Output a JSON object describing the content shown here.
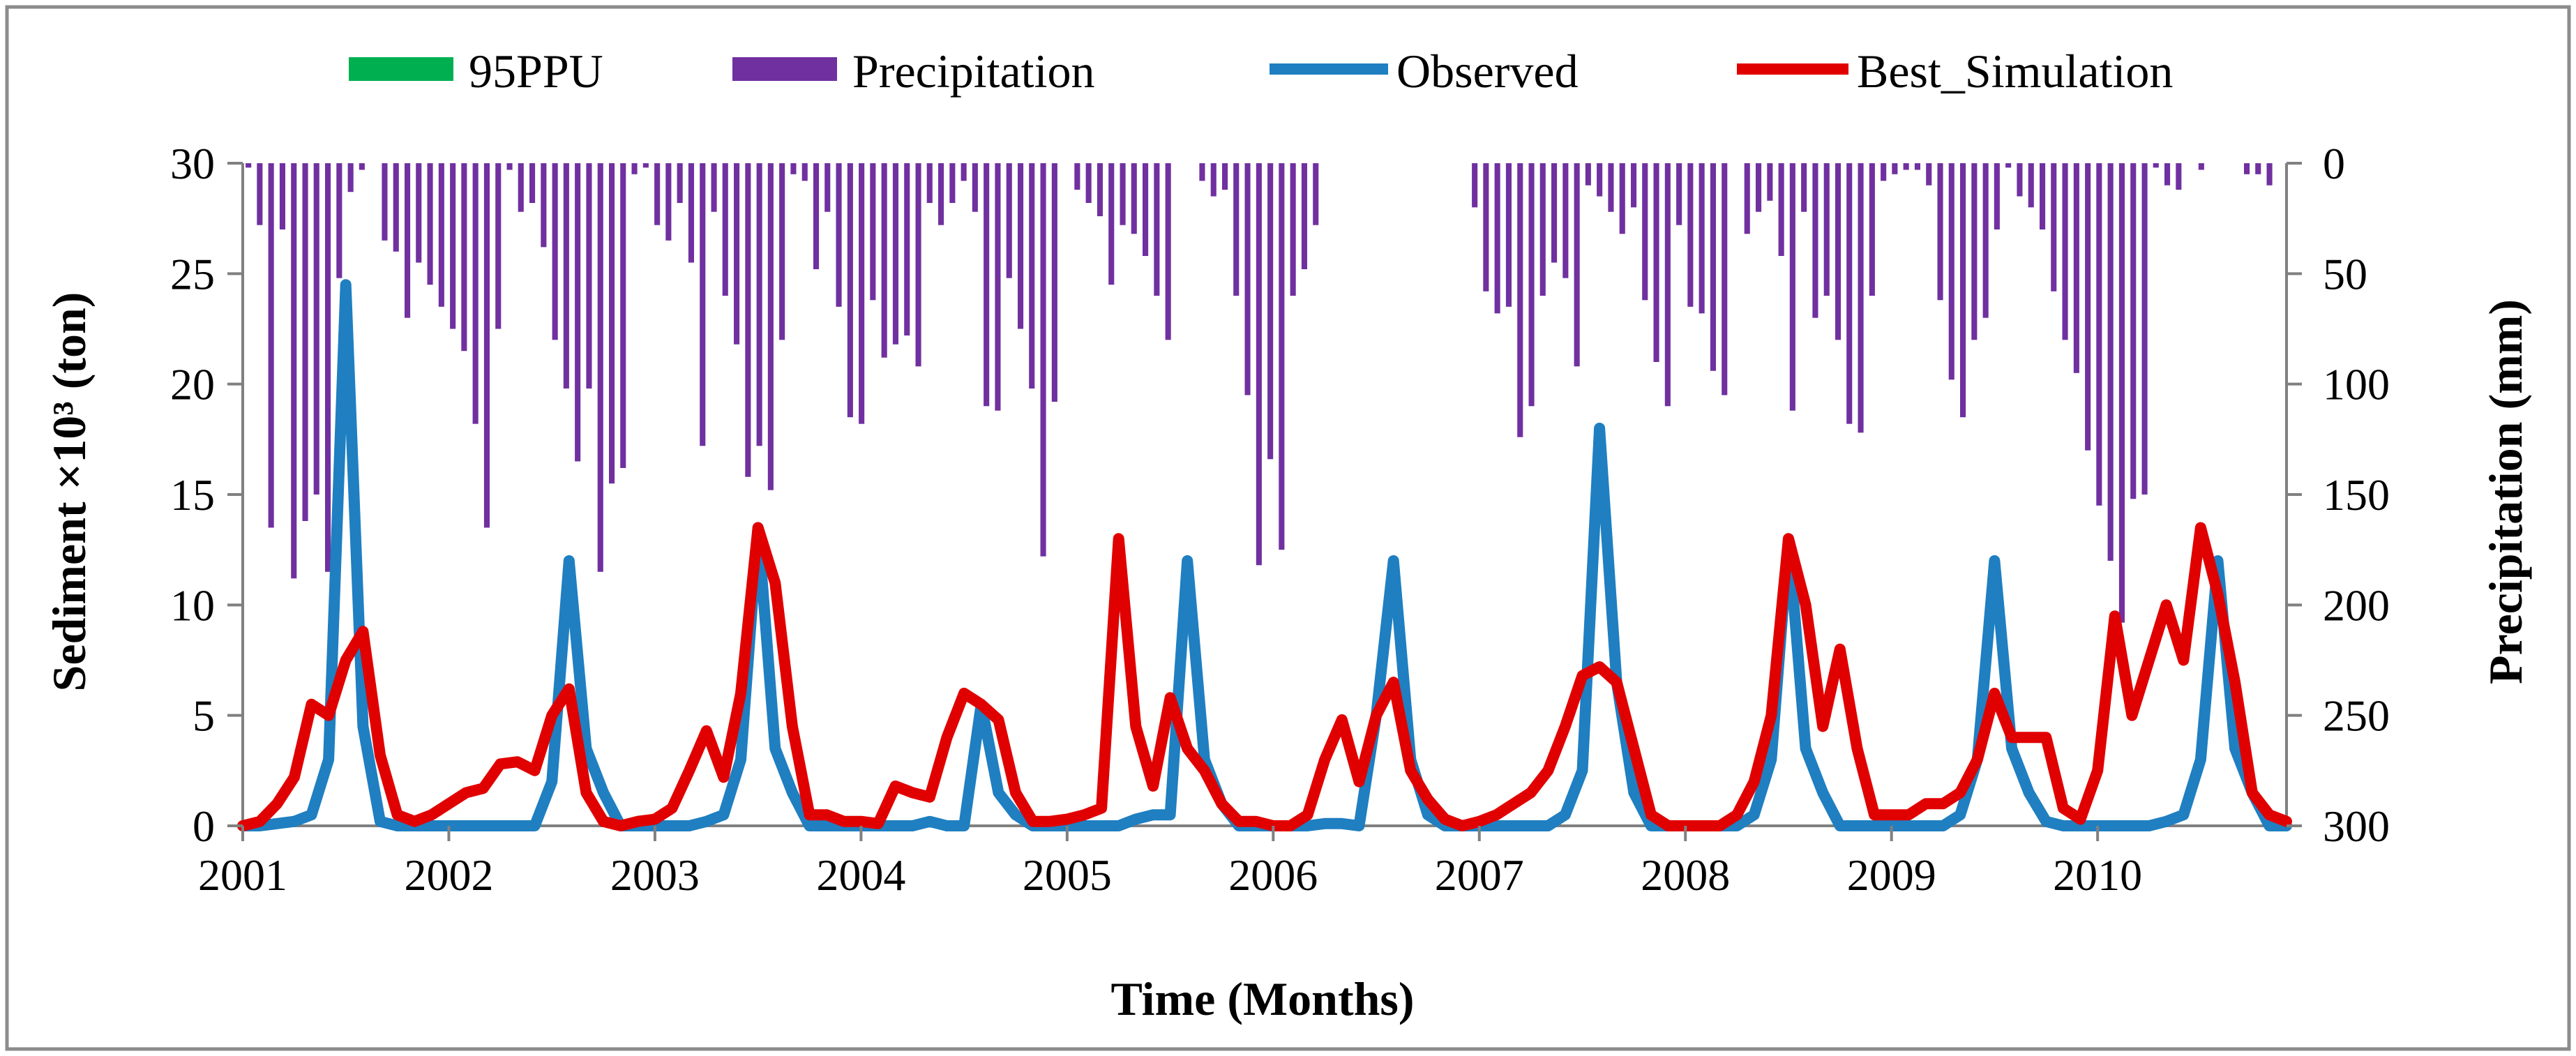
{
  "chart_data": {
    "type": "line",
    "xlabel": "Time (Months)",
    "ylabel_left": "Sediment ×10³ (ton)",
    "ylabel_right": "Precipitation (mm)",
    "ylim_left": [
      0,
      30
    ],
    "ylim_right_inverted": [
      0,
      300
    ],
    "yticks_left": [
      "0",
      "5",
      "10",
      "15",
      "20",
      "25",
      "30"
    ],
    "yticks_right": [
      "0",
      "50",
      "100",
      "150",
      "200",
      "250",
      "300"
    ],
    "xticks": [
      "2001",
      "2002",
      "2003",
      "2004",
      "2005",
      "2006",
      "2007",
      "2008",
      "2009",
      "2010"
    ],
    "legend": {
      "position": "top",
      "entries": [
        "95PPU",
        "Precipitation",
        "Observed",
        "Best_Simulation"
      ]
    },
    "colors": {
      "ppu": "#00b050",
      "precipitation": "#7030a0",
      "observed": "#1f7fc1",
      "simulation": "#e10000"
    },
    "series": [
      {
        "name": "Precipitation",
        "axis": "right",
        "values": [
          2,
          28,
          165,
          30,
          188,
          162,
          150,
          185,
          52,
          13,
          3,
          0,
          35,
          40,
          70,
          45,
          55,
          65,
          75,
          85,
          118,
          165,
          75,
          3,
          22,
          18,
          38,
          80,
          102,
          135,
          102,
          185,
          145,
          138,
          5,
          2,
          28,
          35,
          18,
          45,
          128,
          22,
          60,
          82,
          142,
          128,
          148,
          80,
          5,
          8,
          48,
          22,
          65,
          115,
          118,
          62,
          88,
          82,
          78,
          92,
          18,
          28,
          18,
          8,
          22,
          110,
          112,
          52,
          75,
          102,
          178,
          108,
          0,
          12,
          18,
          24,
          55,
          28,
          32,
          42,
          60,
          80,
          0,
          0,
          8,
          15,
          12,
          60,
          105,
          182,
          134,
          175,
          60,
          48,
          28,
          0,
          0,
          0,
          0,
          0,
          0,
          0,
          0,
          0,
          0,
          0,
          0,
          0,
          20,
          58,
          68,
          65,
          124,
          110,
          60,
          45,
          52,
          92,
          10,
          15,
          22,
          32,
          20,
          62,
          90,
          110,
          28,
          65,
          68,
          94,
          105,
          0,
          32,
          22,
          17,
          42,
          112,
          22,
          70,
          60,
          80,
          118,
          122,
          60,
          8,
          5,
          3,
          3,
          10,
          62,
          98,
          115,
          80,
          70,
          30,
          2,
          15,
          20,
          30,
          58,
          80,
          95,
          130,
          155,
          180,
          208,
          152,
          150,
          2,
          10,
          12,
          0,
          3,
          0,
          0,
          0,
          5,
          5,
          10,
          0
        ]
      },
      {
        "name": "Observed",
        "axis": "left",
        "values": [
          0,
          0,
          0.1,
          0.2,
          0.5,
          3,
          24.5,
          4.5,
          0.2,
          0,
          0,
          0,
          0,
          0,
          0,
          0,
          0,
          0,
          2,
          12,
          3.5,
          1.5,
          0,
          0,
          0,
          0,
          0,
          0.2,
          0.5,
          3,
          13.5,
          3.5,
          1.5,
          0,
          0,
          0,
          0,
          0,
          0,
          0,
          0.2,
          0,
          0,
          5.5,
          1.5,
          0.5,
          0,
          0,
          0,
          0,
          0,
          0,
          0.3,
          0.5,
          0.5,
          12,
          3,
          1,
          0,
          0,
          0,
          0,
          0,
          0.1,
          0.1,
          0,
          5,
          12,
          3,
          0.5,
          0,
          0,
          0,
          0,
          0,
          0,
          0,
          0.5,
          2.5,
          18,
          6.5,
          1.5,
          0,
          0,
          0,
          0,
          0,
          0,
          0.5,
          3,
          13,
          3.5,
          1.5,
          0,
          0,
          0,
          0,
          0,
          0,
          0,
          0.5,
          3,
          12,
          3.5,
          1.5,
          0.2,
          0,
          0,
          0,
          0,
          0,
          0,
          0.2,
          0.5,
          3,
          12,
          3.5,
          1.5,
          0,
          0
        ]
      },
      {
        "name": "Best_Simulation",
        "axis": "left",
        "values": [
          0,
          0.2,
          1,
          2.2,
          5.5,
          5,
          7.5,
          8.8,
          3.2,
          0.5,
          0.2,
          0.5,
          1,
          1.5,
          1.7,
          2.8,
          2.9,
          2.5,
          5,
          6.2,
          1.5,
          0.2,
          0,
          0.2,
          0.3,
          0.8,
          2.5,
          4.3,
          2.2,
          6,
          13.5,
          11,
          4.5,
          0.5,
          0.5,
          0.2,
          0.2,
          0.1,
          1.8,
          1.5,
          1.3,
          4,
          6,
          5.5,
          4.8,
          1.5,
          0.2,
          0.2,
          0.3,
          0.5,
          0.8,
          13,
          4.5,
          1.8,
          5.8,
          3.5,
          2.5,
          1,
          0.2,
          0.2,
          0,
          0,
          0.5,
          3,
          4.8,
          2,
          5,
          6.5,
          2.5,
          1.2,
          0.3,
          0,
          0.2,
          0.5,
          1,
          1.5,
          2.5,
          4.5,
          6.8,
          7.2,
          6.5,
          3.5,
          0.5,
          0,
          0,
          0,
          0,
          0.5,
          2,
          5,
          13,
          10,
          4.5,
          8,
          3.5,
          0.5,
          0.5,
          0.5,
          1,
          1,
          1.5,
          3,
          6,
          4,
          4,
          4,
          0.8,
          0.3,
          2.5,
          9.5,
          5,
          7.5,
          10,
          7.5,
          13.5,
          10.5,
          6.5,
          1.5,
          0.5,
          0.2
        ]
      },
      {
        "name": "95PPU",
        "axis": "left",
        "values": []
      }
    ]
  }
}
